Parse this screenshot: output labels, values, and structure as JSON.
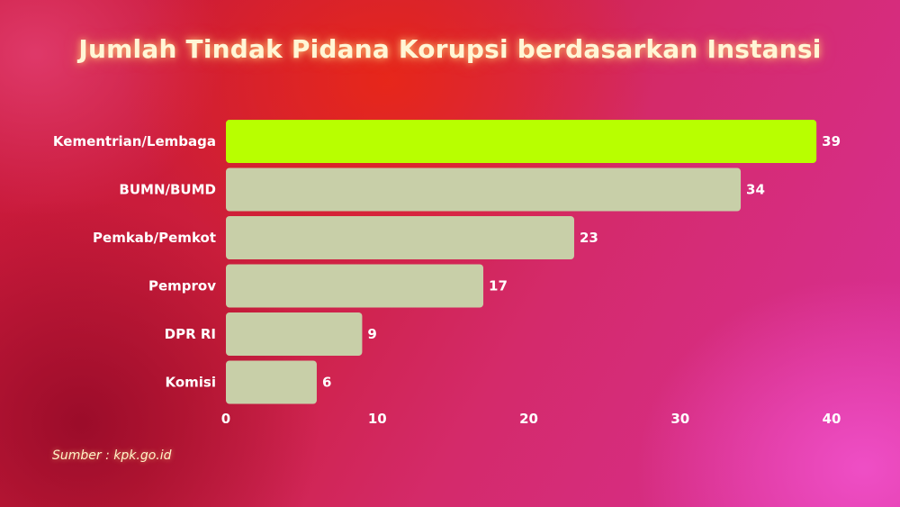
{
  "chart_data": {
    "type": "bar",
    "orientation": "horizontal",
    "title": "Jumlah Tindak Pidana Korupsi berdasarkan Instansi",
    "categories": [
      "Kementrian/Lembaga",
      "BUMN/BUMD",
      "Pemkab/Pemkot",
      "Pemprov",
      "DPR RI",
      "Komisi"
    ],
    "values": [
      39,
      34,
      23,
      17,
      9,
      6
    ],
    "xlim": [
      0,
      40
    ],
    "xticks": [
      0,
      10,
      20,
      30,
      40
    ],
    "grid": false,
    "colors": {
      "highlight": "#b8ff00",
      "bar": "#c8cfa8",
      "text": "#ffffff"
    }
  },
  "source": "Sumber : kpk.go.id"
}
